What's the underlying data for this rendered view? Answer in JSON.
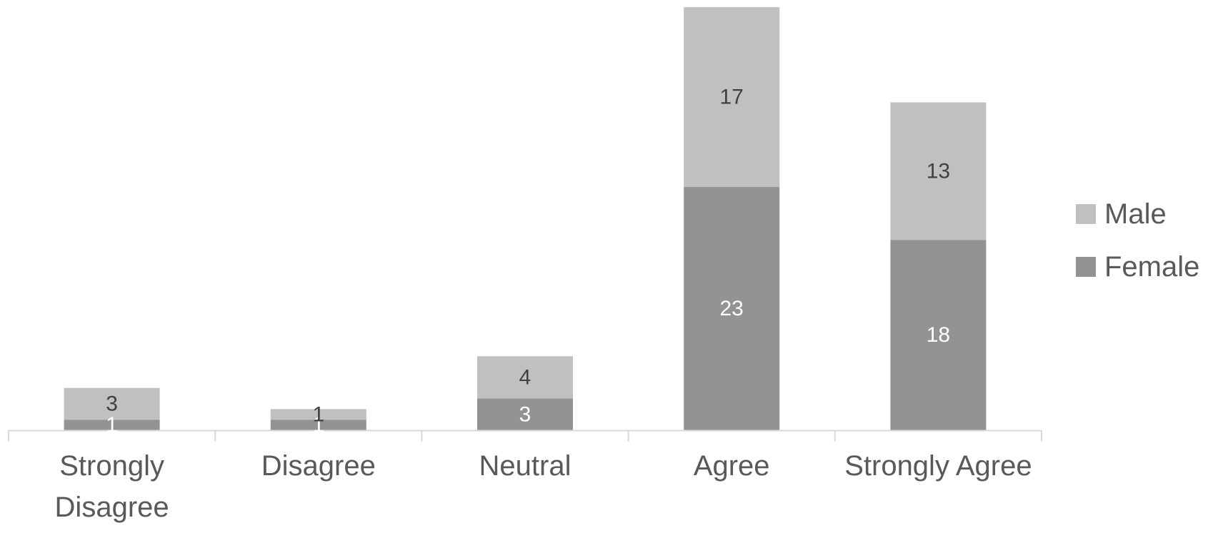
{
  "chart_data": {
    "type": "bar",
    "stacked": true,
    "categories": [
      "Strongly Disagree",
      "Disagree",
      "Neutral",
      "Agree",
      "Strongly Agree"
    ],
    "series": [
      {
        "name": "Female",
        "values": [
          1,
          1,
          3,
          23,
          18
        ],
        "color": "#939393",
        "label_color": "#ffffff"
      },
      {
        "name": "Male",
        "values": [
          3,
          1,
          4,
          17,
          13
        ],
        "color": "#c0c0c0",
        "label_color": "#404040"
      }
    ],
    "axis_color": "#d9d9d9",
    "legend_position": "right",
    "ylim": [
      0,
      40
    ],
    "grid": false
  }
}
